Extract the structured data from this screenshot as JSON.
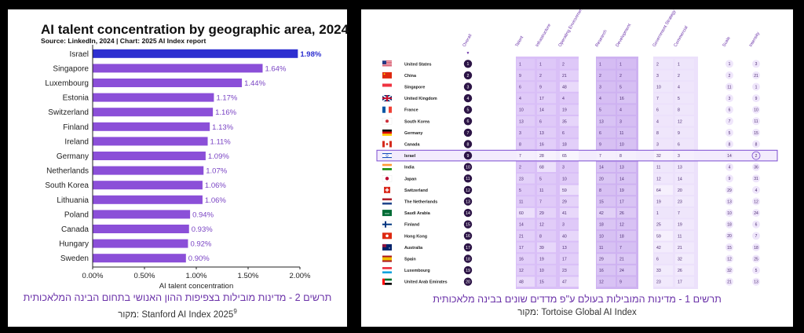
{
  "left_figure": {
    "caption": "תרשים 2 - מדינות מובילות בצפיפות ההון האנושי בתחום הבינה המלאכותית",
    "source_label": "מקור:",
    "source_text": "Stanford AI Index 2025",
    "source_note": "9"
  },
  "right_figure": {
    "caption": "תרשים 1 - מדינות המובילות בעולם ע\"פ מדדים שונים בבינה מלאכותית",
    "source_label": "מקור:",
    "source_text": "Tortoise Global AI Index"
  },
  "chart_data": [
    {
      "type": "bar",
      "orientation": "horizontal",
      "title": "AI talent concentration by geographic area, 2024",
      "subtitle": "Source: LinkedIn, 2024 | Chart: 2025 AI Index report",
      "xlabel": "AI talent concentration",
      "ylabel": "",
      "xlim": [
        0,
        2.0
      ],
      "xticks": [
        "0.00%",
        "0.50%",
        "1.00%",
        "1.50%",
        "2.00%"
      ],
      "xtick_values": [
        0,
        0.5,
        1.0,
        1.5,
        2.0
      ],
      "categories": [
        "Israel",
        "Singapore",
        "Luxembourg",
        "Estonia",
        "Switzerland",
        "Finland",
        "Ireland",
        "Germany",
        "Netherlands",
        "South Korea",
        "Lithuania",
        "Poland",
        "Canada",
        "Hungary",
        "Sweden"
      ],
      "values": [
        1.98,
        1.64,
        1.44,
        1.17,
        1.16,
        1.13,
        1.11,
        1.09,
        1.07,
        1.06,
        1.06,
        0.94,
        0.93,
        0.92,
        0.9
      ],
      "value_labels": [
        "1.98%",
        "1.64%",
        "1.44%",
        "1.17%",
        "1.16%",
        "1.13%",
        "1.11%",
        "1.09%",
        "1.07%",
        "1.06%",
        "1.06%",
        "0.94%",
        "0.93%",
        "0.92%",
        "0.90%"
      ],
      "highlight": "Israel",
      "colors": {
        "bar": "#8b4fd8",
        "highlight": "#2d2fd0",
        "label": "#7a44c4"
      }
    },
    {
      "type": "table",
      "columns": [
        "Overall",
        "Talent",
        "Infrastructure",
        "Operating Environment",
        "Research",
        "Development",
        "Government Strategy",
        "Commercial",
        "Scale",
        "Intensity"
      ],
      "sort_indicator": "▼",
      "highlight": "Israel",
      "rows": [
        {
          "country": "United States",
          "flag": "us",
          "overall": 1,
          "values": [
            1,
            1,
            2,
            1,
            1,
            2,
            1
          ],
          "scale": 1,
          "intensity": 3
        },
        {
          "country": "China",
          "flag": "cn",
          "overall": 2,
          "values": [
            9,
            2,
            21,
            2,
            2,
            3,
            2
          ],
          "scale": 2,
          "intensity": 21
        },
        {
          "country": "Singapore",
          "flag": "sg",
          "overall": 3,
          "values": [
            6,
            9,
            48,
            3,
            5,
            10,
            4
          ],
          "scale": 11,
          "intensity": 1
        },
        {
          "country": "United Kingdom",
          "flag": "gb",
          "overall": 4,
          "values": [
            4,
            17,
            4,
            4,
            16,
            7,
            5
          ],
          "scale": 3,
          "intensity": 9
        },
        {
          "country": "France",
          "flag": "fr",
          "overall": 5,
          "values": [
            10,
            14,
            19,
            5,
            4,
            6,
            8
          ],
          "scale": 6,
          "intensity": 10
        },
        {
          "country": "South Korea",
          "flag": "kr",
          "overall": 6,
          "values": [
            13,
            6,
            35,
            13,
            3,
            4,
            12
          ],
          "scale": 7,
          "intensity": 11
        },
        {
          "country": "Germany",
          "flag": "de",
          "overall": 7,
          "values": [
            3,
            13,
            6,
            6,
            11,
            8,
            9
          ],
          "scale": 5,
          "intensity": 15
        },
        {
          "country": "Canada",
          "flag": "ca",
          "overall": 8,
          "values": [
            8,
            16,
            18,
            9,
            10,
            3,
            6
          ],
          "scale": 8,
          "intensity": 8
        },
        {
          "country": "Israel",
          "flag": "il",
          "overall": 9,
          "values": [
            7,
            28,
            65,
            7,
            8,
            32,
            3
          ],
          "scale": 14,
          "intensity": 2
        },
        {
          "country": "India",
          "flag": "in",
          "overall": 10,
          "values": [
            2,
            68,
            3,
            14,
            13,
            11,
            13
          ],
          "scale": 4,
          "intensity": 36
        },
        {
          "country": "Japan",
          "flag": "jp",
          "overall": 11,
          "values": [
            23,
            5,
            10,
            20,
            14,
            12,
            14
          ],
          "scale": 9,
          "intensity": 31
        },
        {
          "country": "Switzerland",
          "flag": "ch",
          "overall": 12,
          "values": [
            5,
            11,
            59,
            8,
            19,
            64,
            20
          ],
          "scale": 29,
          "intensity": 4
        },
        {
          "country": "The Netherlands",
          "flag": "nl",
          "overall": 13,
          "values": [
            11,
            7,
            29,
            15,
            17,
            19,
            23
          ],
          "scale": 13,
          "intensity": 12
        },
        {
          "country": "Saudi Arabia",
          "flag": "sa",
          "overall": 14,
          "values": [
            60,
            29,
            41,
            42,
            26,
            1,
            7
          ],
          "scale": 10,
          "intensity": 24
        },
        {
          "country": "Finland",
          "flag": "fi",
          "overall": 15,
          "values": [
            14,
            12,
            3,
            18,
            12,
            25,
            19
          ],
          "scale": 18,
          "intensity": 6
        },
        {
          "country": "Hong Kong",
          "flag": "hk",
          "overall": 16,
          "values": [
            21,
            8,
            40,
            10,
            18,
            59,
            11
          ],
          "scale": 20,
          "intensity": 7
        },
        {
          "country": "Australia",
          "flag": "au",
          "overall": 17,
          "values": [
            17,
            39,
            13,
            11,
            7,
            42,
            21
          ],
          "scale": 15,
          "intensity": 18
        },
        {
          "country": "Spain",
          "flag": "es",
          "overall": 18,
          "values": [
            16,
            19,
            17,
            29,
            21,
            6,
            32
          ],
          "scale": 12,
          "intensity": 25
        },
        {
          "country": "Luxembourg",
          "flag": "lu",
          "overall": 19,
          "values": [
            12,
            10,
            23,
            16,
            24,
            33,
            26
          ],
          "scale": 32,
          "intensity": 5
        },
        {
          "country": "United Arab Emirates",
          "flag": "ae",
          "overall": 20,
          "values": [
            48,
            15,
            47,
            12,
            9,
            23,
            17
          ],
          "scale": 21,
          "intensity": 13
        }
      ],
      "colors": {
        "badge": "#2c1446",
        "highlight_border": "#7b4bd0"
      }
    }
  ]
}
